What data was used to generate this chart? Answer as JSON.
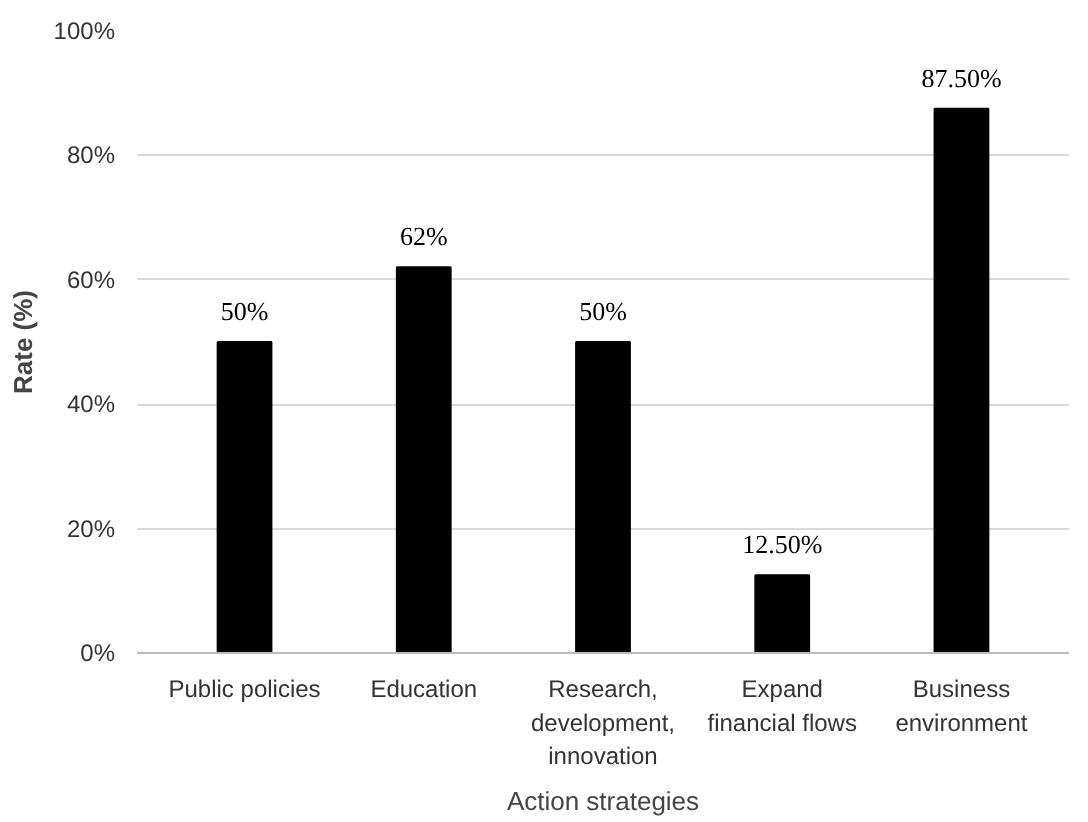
{
  "chart_data": {
    "type": "bar",
    "categories": [
      "Public policies",
      "Education",
      "Research,\ndevelopment,\ninnovation",
      "Expand\nfinancial flows",
      "Business\nenvironment"
    ],
    "values": [
      50,
      62,
      50,
      12.5,
      87.5
    ],
    "value_labels": [
      "50%",
      "62%",
      "50%",
      "12.50%",
      "87.50%"
    ],
    "color": "#000000",
    "xlabel": "Action strategies",
    "ylabel": "Rate (%)",
    "ylim": [
      0,
      100
    ],
    "yticks": [
      {
        "value": 0,
        "label": "0%"
      },
      {
        "value": 20,
        "label": "20%"
      },
      {
        "value": 40,
        "label": "40%"
      },
      {
        "value": 60,
        "label": "60%"
      },
      {
        "value": 80,
        "label": "80%"
      },
      {
        "value": 100,
        "label": "100%"
      }
    ],
    "grid": "y"
  }
}
